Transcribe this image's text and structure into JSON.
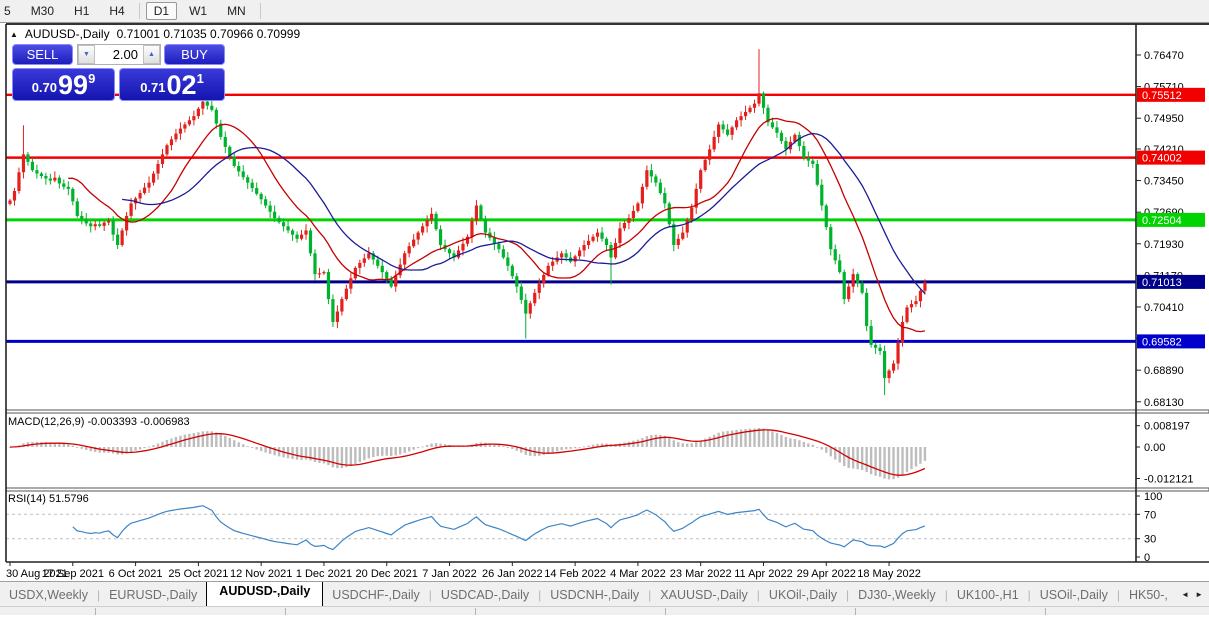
{
  "toolbar": {
    "items": [
      {
        "label": "5",
        "active": false
      },
      {
        "label": "M30",
        "active": false
      },
      {
        "label": "H1",
        "active": false
      },
      {
        "label": "H4",
        "active": false
      },
      {
        "label": "D1",
        "active": true
      },
      {
        "label": "W1",
        "active": false
      },
      {
        "label": "MN",
        "active": false
      }
    ]
  },
  "chart_header": {
    "collapse_icon": "▲",
    "title": "AUDUSD-,Daily",
    "ohlc": "0.71001 0.71035 0.70966 0.70999"
  },
  "trade_panel": {
    "sell_label": "SELL",
    "buy_label": "BUY",
    "volume": "2.00",
    "down_glyph": "▼",
    "up_glyph": "▲",
    "sell_price": {
      "prefix": "0.70",
      "big": "99",
      "sup": "9"
    },
    "buy_price": {
      "prefix": "0.71",
      "big": "02",
      "sup": "1"
    }
  },
  "price_axis": {
    "ticks": [
      "0.76470",
      "0.75710",
      "0.74950",
      "0.74210",
      "0.73450",
      "0.72690",
      "0.71930",
      "0.71170",
      "0.70410",
      "0.69650",
      "0.68890",
      "0.68130"
    ]
  },
  "macd_panel": {
    "label": "MACD(12,26,9) -0.003393 -0.006983",
    "ticks": [
      "0.008197",
      "0.00",
      "-0.012121"
    ]
  },
  "rsi_panel": {
    "label": "RSI(14) 51.5796",
    "ticks": [
      "100",
      "70",
      "30",
      "0"
    ]
  },
  "date_axis": [
    "30 Aug 2021",
    "17 Sep 2021",
    "6 Oct 2021",
    "25 Oct 2021",
    "12 Nov 2021",
    "1 Dec 2021",
    "20 Dec 2021",
    "7 Jan 2022",
    "26 Jan 2022",
    "14 Feb 2022",
    "4 Mar 2022",
    "23 Mar 2022",
    "11 Apr 2022",
    "29 Apr 2022",
    "18 May 2022"
  ],
  "tabs": {
    "items": [
      "USDX,Weekly",
      "EURUSD-,Daily",
      "AUDUSD-,Daily",
      "USDCHF-,Daily",
      "USDCAD-,Daily",
      "USDCNH-,Daily",
      "XAUUSD-,Daily",
      "UKOil-,Daily",
      "DJ30-,Weekly",
      "UK100-,H1",
      "USOil-,Daily",
      "HK50-,"
    ],
    "active_index": 2,
    "left_arrow": "◄",
    "right_arrow": "►"
  },
  "chart_data": {
    "type": "candlestick",
    "symbol": "AUDUSD-,Daily",
    "current_ohlc": {
      "open": 0.71001,
      "high": 0.71035,
      "low": 0.70966,
      "close": 0.70999
    },
    "bid": "0.70999",
    "ask": "0.71021",
    "bull_color": "#e3211c",
    "bear_color": "#00b22d",
    "price_axis": {
      "max": 0.7647,
      "min": 0.6813,
      "step": 0.0076
    },
    "x_labels": [
      "30 Aug 2021",
      "17 Sep 2021",
      "6 Oct 2021",
      "25 Oct 2021",
      "12 Nov 2021",
      "1 Dec 2021",
      "20 Dec 2021",
      "7 Jan 2022",
      "26 Jan 2022",
      "14 Feb 2022",
      "4 Mar 2022",
      "23 Mar 2022",
      "11 Apr 2022",
      "29 Apr 2022",
      "18 May 2022"
    ],
    "candles_per_label": 14,
    "closes": [
      0.7297,
      0.732,
      0.7365,
      0.7408,
      0.739,
      0.737,
      0.7362,
      0.7356,
      0.735,
      0.7345,
      0.7352,
      0.7338,
      0.733,
      0.7325,
      0.7295,
      0.726,
      0.7252,
      0.7242,
      0.7235,
      0.724,
      0.7236,
      0.7244,
      0.7248,
      0.7215,
      0.719,
      0.7225,
      0.726,
      0.729,
      0.7302,
      0.7315,
      0.7328,
      0.734,
      0.7362,
      0.7385,
      0.7408,
      0.743,
      0.7444,
      0.7458,
      0.747,
      0.748,
      0.749,
      0.75,
      0.7518,
      0.7535,
      0.7525,
      0.7515,
      0.7482,
      0.745,
      0.7426,
      0.7403,
      0.738,
      0.7367,
      0.7353,
      0.734,
      0.7327,
      0.7313,
      0.73,
      0.7285,
      0.727,
      0.7255,
      0.7245,
      0.7235,
      0.7225,
      0.7215,
      0.7205,
      0.7215,
      0.7225,
      0.717,
      0.712,
      0.7122,
      0.7125,
      0.706,
      0.7005,
      0.703,
      0.706,
      0.7085,
      0.711,
      0.7135,
      0.7147,
      0.7158,
      0.717,
      0.7155,
      0.714,
      0.7125,
      0.7108,
      0.709,
      0.7117,
      0.7143,
      0.717,
      0.7187,
      0.7203,
      0.722,
      0.7235,
      0.725,
      0.7265,
      0.7228,
      0.719,
      0.718,
      0.717,
      0.716,
      0.7177,
      0.7193,
      0.721,
      0.7248,
      0.7285,
      0.7253,
      0.722,
      0.7207,
      0.7193,
      0.718,
      0.716,
      0.714,
      0.7115,
      0.709,
      0.7058,
      0.7025,
      0.705,
      0.7075,
      0.7097,
      0.7118,
      0.714,
      0.715,
      0.716,
      0.717,
      0.716,
      0.715,
      0.7163,
      0.7177,
      0.719,
      0.72,
      0.721,
      0.722,
      0.7205,
      0.719,
      0.716,
      0.7195,
      0.723,
      0.7243,
      0.7255,
      0.7272,
      0.729,
      0.733,
      0.737,
      0.7355,
      0.734,
      0.7315,
      0.729,
      0.724,
      0.719,
      0.7205,
      0.722,
      0.725,
      0.728,
      0.7325,
      0.737,
      0.7395,
      0.742,
      0.745,
      0.748,
      0.7468,
      0.7455,
      0.7473,
      0.749,
      0.75,
      0.751,
      0.752,
      0.753,
      0.7555,
      0.752,
      0.7485,
      0.7473,
      0.746,
      0.744,
      0.742,
      0.7438,
      0.7455,
      0.7428,
      0.74,
      0.7393,
      0.7385,
      0.7335,
      0.7285,
      0.7233,
      0.718,
      0.7153,
      0.7125,
      0.706,
      0.709,
      0.712,
      0.7098,
      0.7075,
      0.6995,
      0.695,
      0.6943,
      0.6935,
      0.687,
      0.6888,
      0.6905,
      0.6955,
      0.7005,
      0.704,
      0.7048,
      0.7055,
      0.708,
      0.71
    ],
    "wick_overrides": {
      "3": {
        "h": 0.7478
      },
      "72": {
        "l": 0.6993
      },
      "115": {
        "l": 0.6965
      },
      "134": {
        "l": 0.7095
      },
      "167": {
        "h": 0.7661
      },
      "195": {
        "l": 0.6829
      }
    },
    "h_lines": [
      {
        "price": 0.75512,
        "label": "0.75512",
        "color": "#f20000",
        "width": 2.4
      },
      {
        "price": 0.74002,
        "label": "0.74002",
        "color": "#f20000",
        "width": 2.4
      },
      {
        "price": 0.72504,
        "label": "0.72504",
        "color": "#00d400",
        "width": 3
      },
      {
        "price": 0.71013,
        "label": "0.71013",
        "color": "#00008b",
        "width": 3
      },
      {
        "price": 0.69582,
        "label": "0.69582",
        "color": "#0000cd",
        "width": 3
      }
    ],
    "moving_averages": [
      {
        "period": 14,
        "color": "#c40000"
      },
      {
        "period": 26,
        "color": "#1c1c96"
      }
    ],
    "macd": {
      "fast": 12,
      "slow": 26,
      "signal": 9,
      "value": -0.003393,
      "signal_value": -0.006983,
      "axis_max": 0.008197,
      "axis_min": -0.012121,
      "hist_color": "#bdbdbd",
      "line_color": "#d40000"
    },
    "rsi": {
      "period": 14,
      "value": 51.5796,
      "color": "#3d85c6",
      "levels": [
        70,
        30
      ],
      "axis": [
        100,
        70,
        30,
        0
      ]
    }
  }
}
